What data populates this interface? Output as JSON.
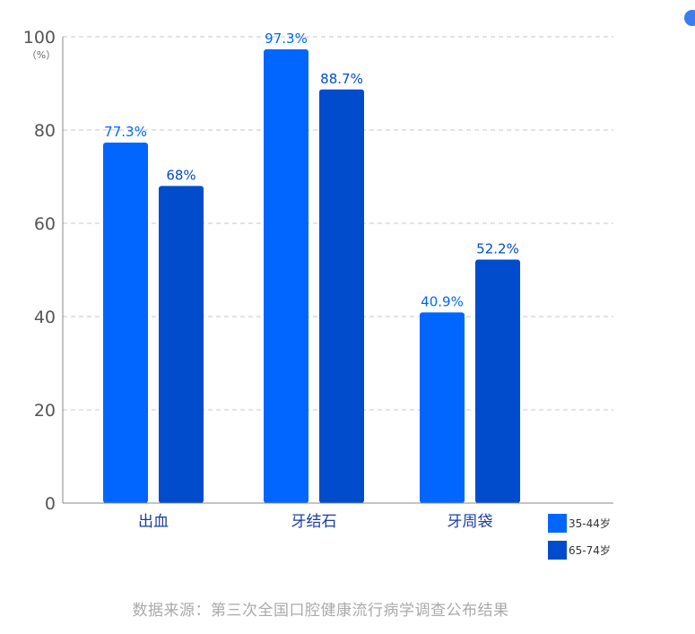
{
  "chart_data": {
    "type": "bar",
    "title": "",
    "xlabel": "",
    "ylabel": "",
    "y_unit": "（%）",
    "ylim": [
      0,
      100
    ],
    "yticks": [
      0,
      20,
      40,
      60,
      80,
      100
    ],
    "grid": true,
    "legend_position": "bottom-right",
    "categories": [
      "出血",
      "牙结石",
      "牙周袋"
    ],
    "series": [
      {
        "name": "35-44岁",
        "color": "#0066ff",
        "values": [
          77.3,
          97.3,
          40.9
        ],
        "labels": [
          "77.3%",
          "97.3%",
          "40.9%"
        ]
      },
      {
        "name": "65-74岁",
        "color": "#004ccc",
        "values": [
          68,
          88.7,
          52.2
        ],
        "labels": [
          "68%",
          "88.7%",
          "52.2%"
        ]
      }
    ]
  },
  "source_note": "数据来源：第三次全国口腔健康流行病学调查公布结果",
  "corner_icon": "app-badge-icon"
}
